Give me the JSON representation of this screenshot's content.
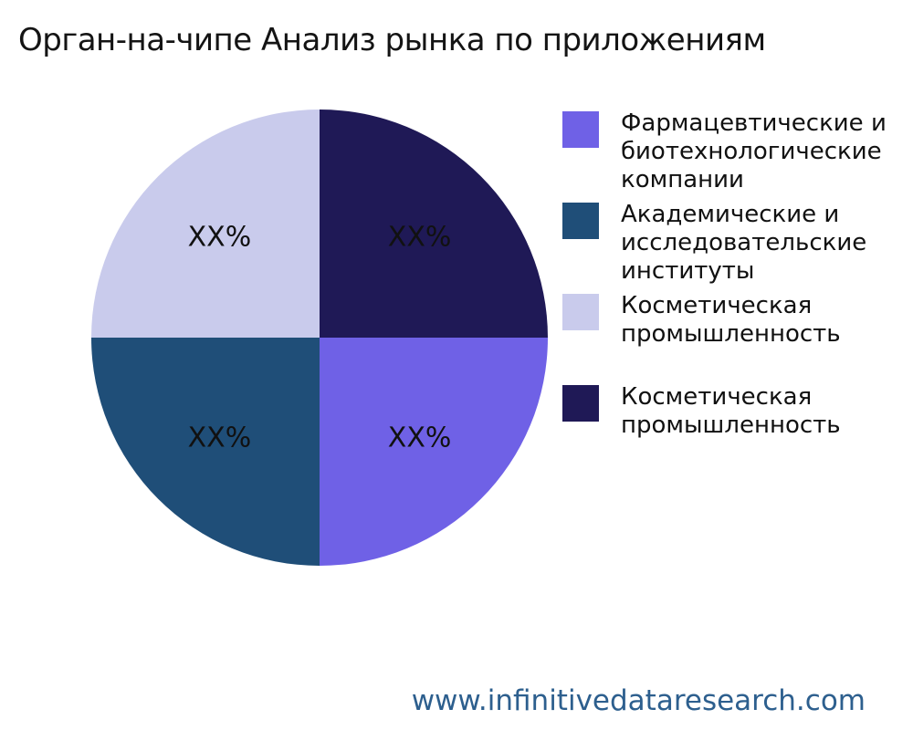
{
  "page": {
    "background_color": "#ffffff"
  },
  "title": "Орган-на-чипе Анализ рынка по приложениям",
  "footer": {
    "website": "www.infinitivedataresearch.com",
    "color": "#2D5F8E"
  },
  "chart_data": {
    "type": "pie",
    "title": "Орган-на-чипе Анализ рынка по приложениям",
    "start_angle": "3-oclock",
    "direction": "clockwise",
    "legend_position": "right",
    "value_label_color": "#111111",
    "slices": [
      {
        "label": "Фармацевтические и биотехнологические компании",
        "value": 25,
        "value_label": "XX%",
        "color": "#6F61E6"
      },
      {
        "label": "Академические и исследовательские институты",
        "value": 25,
        "value_label": "XX%",
        "color": "#1F4E78"
      },
      {
        "label": "Косметическая промышленность",
        "value": 25,
        "value_label": "XX%",
        "color": "#C9CBEC"
      },
      {
        "label": "Косметическая промышленность",
        "value": 25,
        "value_label": "XX%",
        "color": "#1F1956"
      }
    ]
  }
}
